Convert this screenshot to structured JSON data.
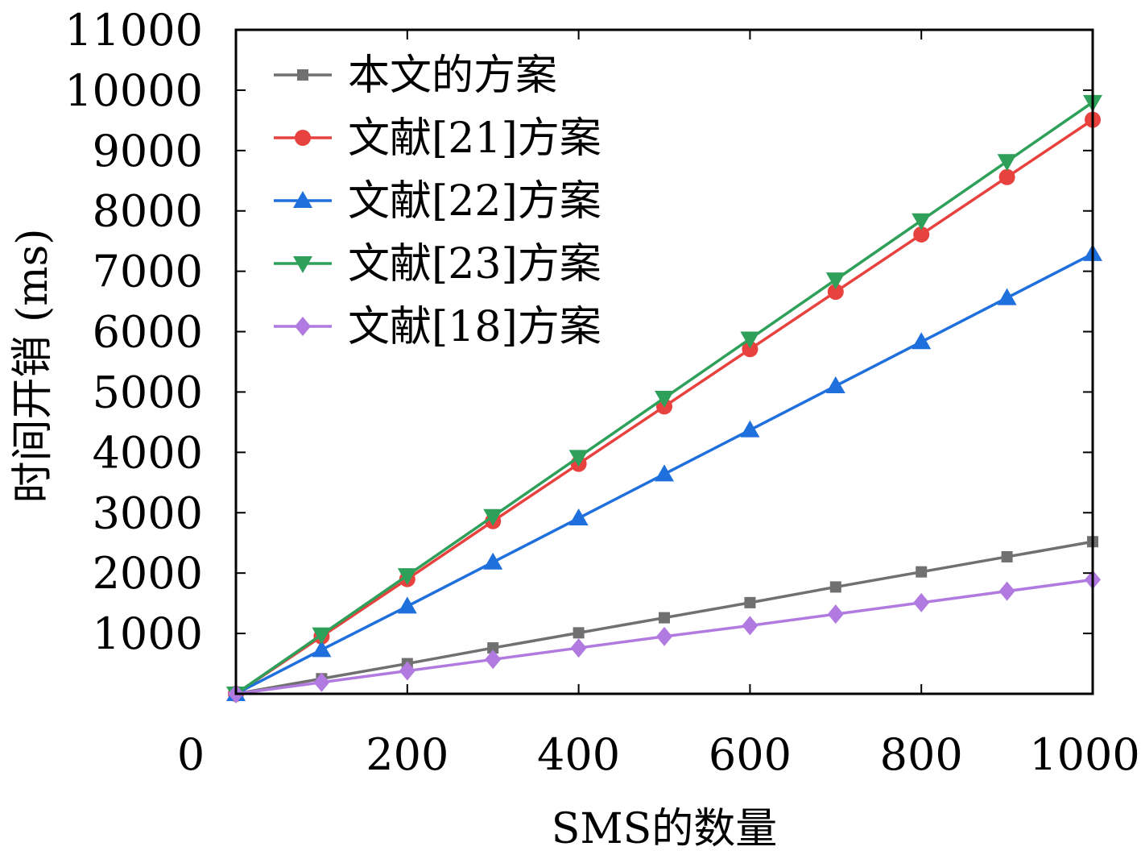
{
  "chart_data": {
    "type": "line",
    "xlabel": "SMS的数量",
    "ylabel": "时间开销 (ms)",
    "x": [
      0,
      100,
      200,
      300,
      400,
      500,
      600,
      700,
      800,
      900,
      1000
    ],
    "xlim": [
      0,
      1000
    ],
    "ylim": [
      0,
      11000
    ],
    "x_ticks": [
      0,
      200,
      400,
      600,
      800,
      1000
    ],
    "y_ticks": [
      1000,
      2000,
      3000,
      4000,
      5000,
      6000,
      7000,
      8000,
      9000,
      10000,
      11000
    ],
    "x_tick_labels": [
      "0",
      "200",
      "400",
      "600",
      "800",
      "1000"
    ],
    "y_tick_labels": [
      "1000",
      "2000",
      "3000",
      "4000",
      "5000",
      "6000",
      "7000",
      "8000",
      "9000",
      "10000",
      "11000"
    ],
    "grid": false,
    "legend_position": "top-left",
    "series": [
      {
        "name": "本文的方案",
        "color": "#707070",
        "marker": "square",
        "values": [
          0,
          250,
          500,
          760,
          1010,
          1260,
          1510,
          1770,
          2020,
          2270,
          2520
        ]
      },
      {
        "name": "文献[21]方案",
        "color": "#e8423f",
        "marker": "circle",
        "values": [
          0,
          950,
          1900,
          2860,
          3810,
          4760,
          5710,
          6660,
          7610,
          8560,
          9510
        ]
      },
      {
        "name": "文献[22]方案",
        "color": "#1f6fdc",
        "marker": "triangle-up",
        "values": [
          0,
          730,
          1450,
          2180,
          2910,
          3640,
          4370,
          5100,
          5830,
          6560,
          7290
        ]
      },
      {
        "name": "文献[23]方案",
        "color": "#2ea05a",
        "marker": "triangle-down",
        "values": [
          0,
          980,
          1960,
          2940,
          3920,
          4900,
          5880,
          6860,
          7840,
          8820,
          9800
        ]
      },
      {
        "name": "文献[18]方案",
        "color": "#b07ae0",
        "marker": "diamond",
        "values": [
          0,
          190,
          380,
          570,
          760,
          950,
          1130,
          1320,
          1510,
          1700,
          1890
        ]
      }
    ]
  }
}
